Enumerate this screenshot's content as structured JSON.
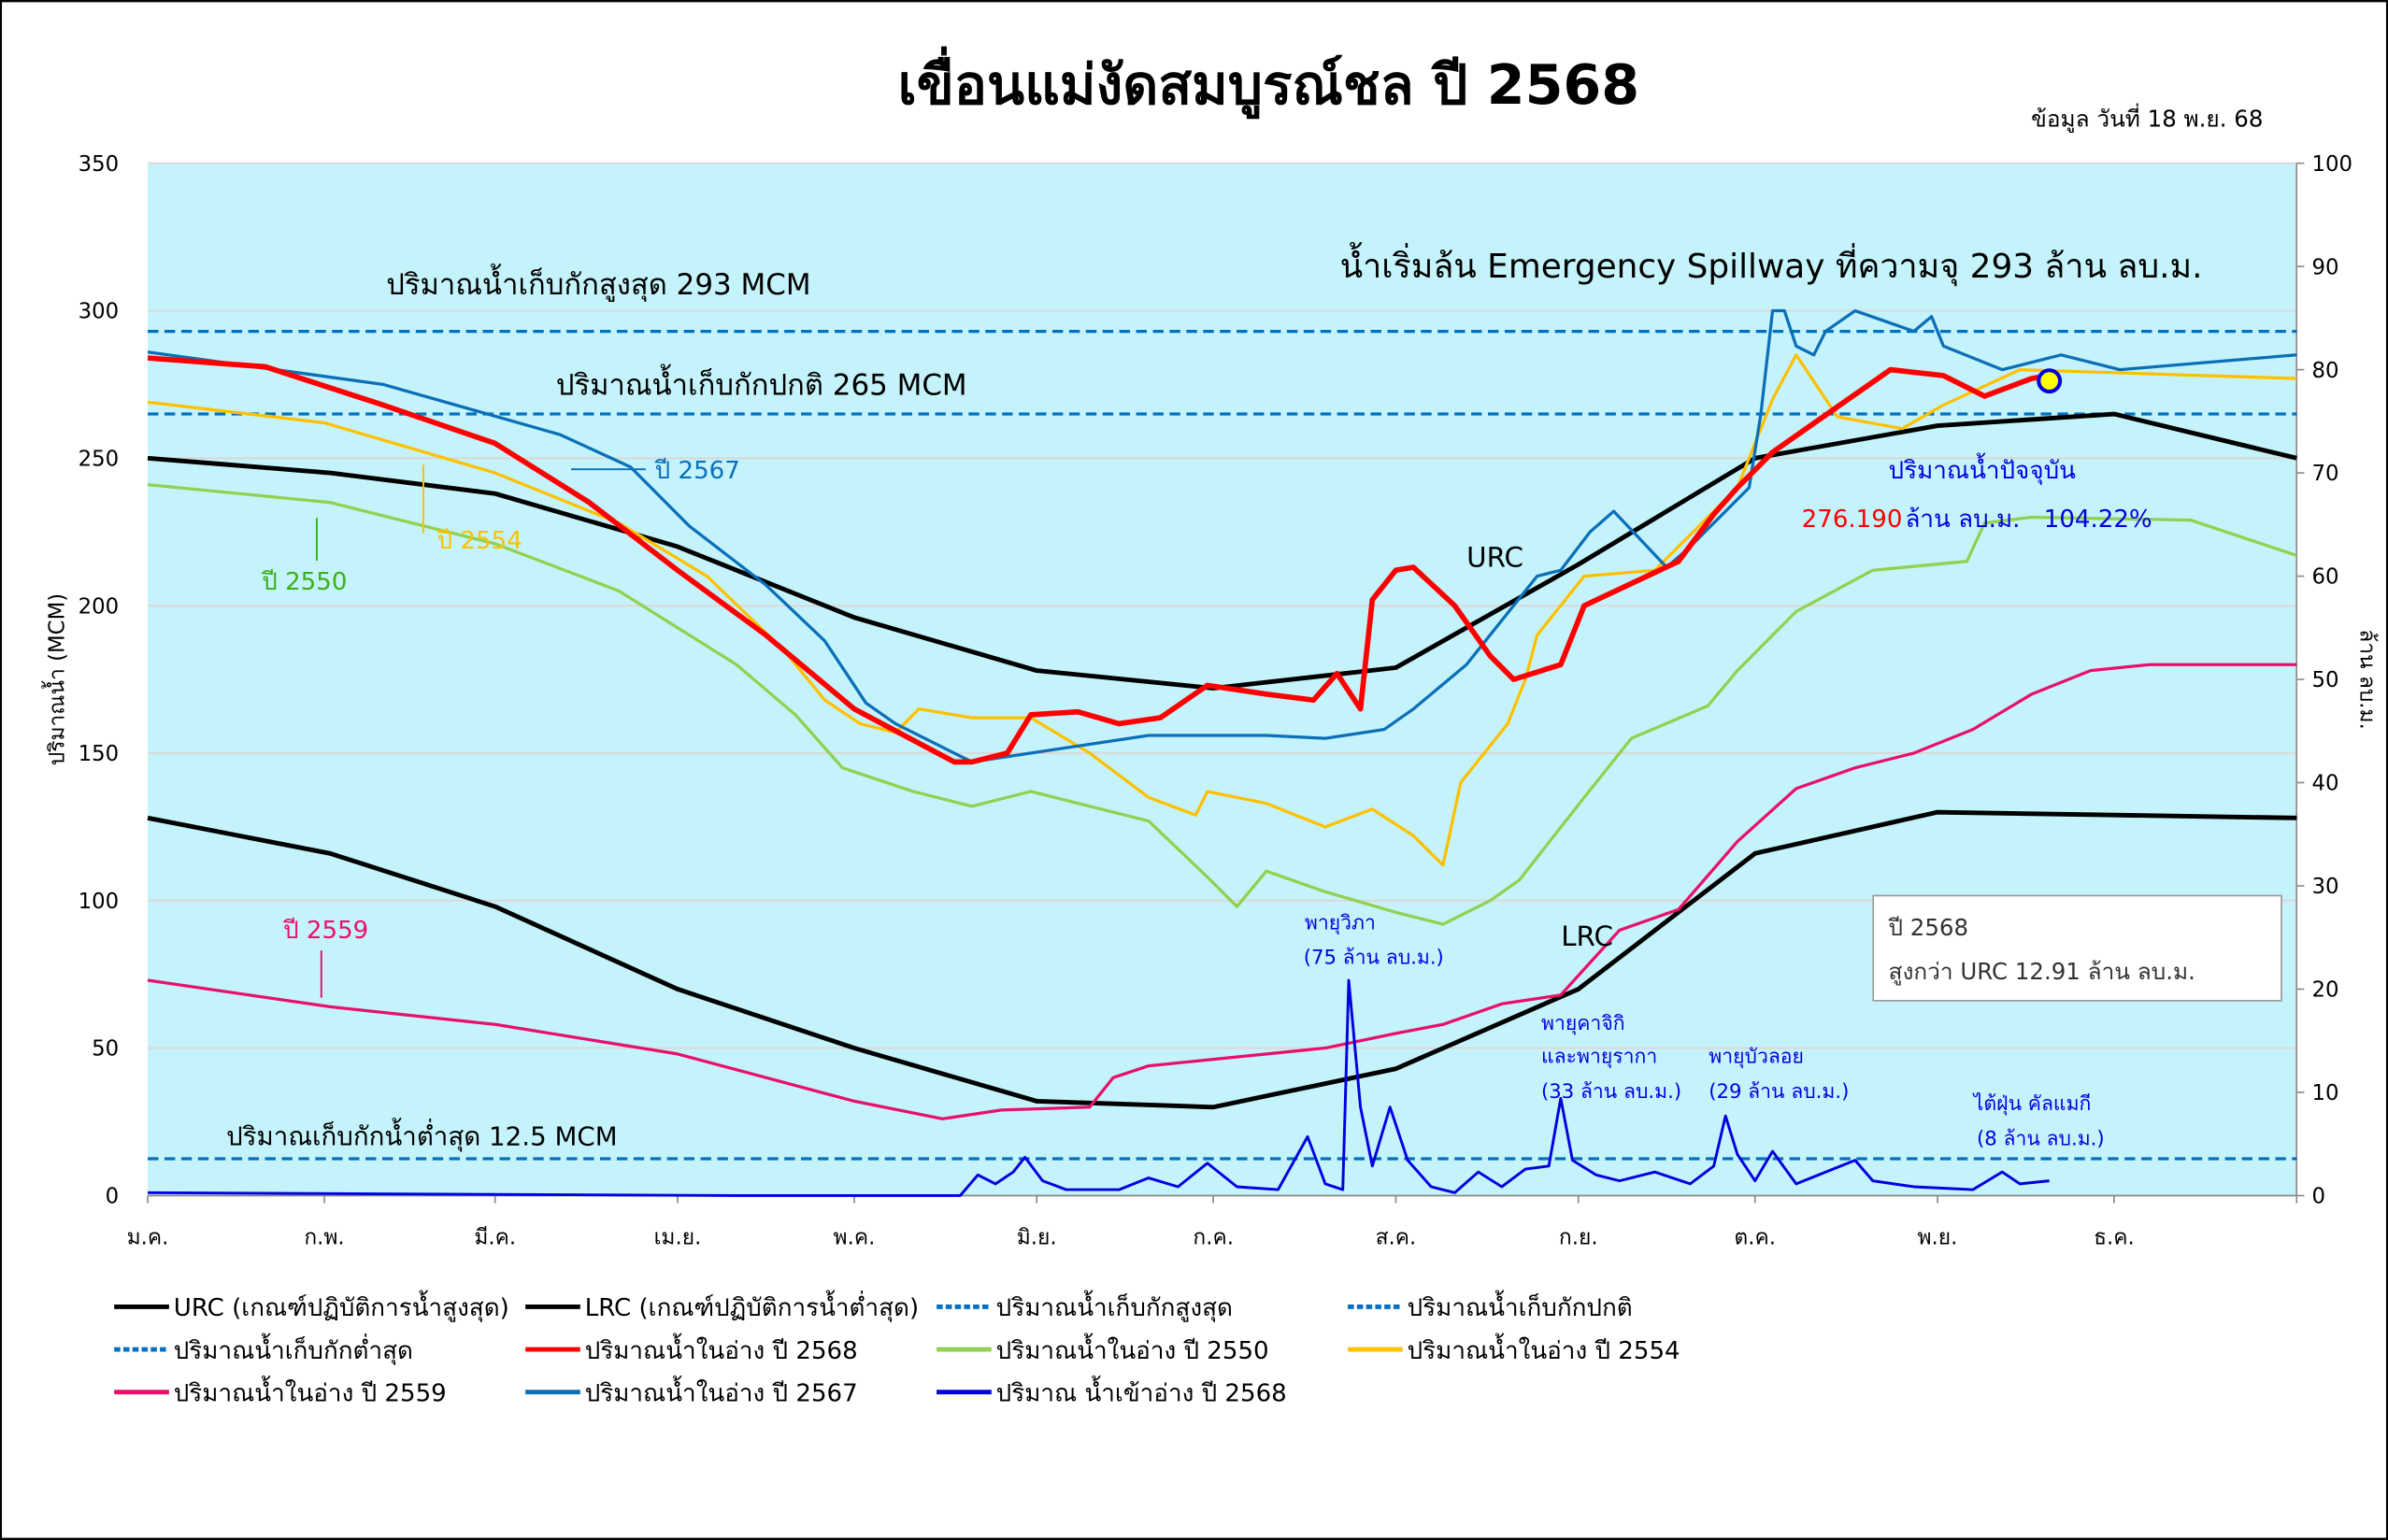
{
  "chart_data": {
    "type": "line",
    "title": "เขื่อนแม่งัดสมบูรณ์ชล ปี 2568",
    "subtitle": "ข้อมูล วันที่ 18 พ.ย. 68",
    "ylabel": "ปริมาณน้ำ (MCM)",
    "ylabel_right": "ล้าน ลบ.ม.",
    "ylim": [
      0,
      350
    ],
    "ylim_right": [
      0,
      100
    ],
    "yticks": [
      0,
      50,
      100,
      150,
      200,
      250,
      300,
      350
    ],
    "yticks_right": [
      0,
      10,
      20,
      30,
      40,
      50,
      60,
      70,
      80,
      90,
      100
    ],
    "x_unit": "day of year",
    "xlim": [
      0,
      365
    ],
    "months": [
      {
        "label": "ม.ค.",
        "day": 0
      },
      {
        "label": "ก.พ.",
        "day": 30
      },
      {
        "label": "มี.ค.",
        "day": 59
      },
      {
        "label": "เม.ย.",
        "day": 90
      },
      {
        "label": "พ.ค.",
        "day": 120
      },
      {
        "label": "มิ.ย.",
        "day": 151
      },
      {
        "label": "ก.ค.",
        "day": 181
      },
      {
        "label": "ส.ค.",
        "day": 212
      },
      {
        "label": "ก.ย.",
        "day": 243
      },
      {
        "label": "ต.ค.",
        "day": 273
      },
      {
        "label": "พ.ย.",
        "day": 304
      },
      {
        "label": "ธ.ค.",
        "day": 334
      }
    ],
    "hlines": [
      {
        "name": "ปริมาณน้ำเก็บกักสูงสุด",
        "value": 293,
        "color": "#0070c0",
        "label": "ปริมาณน้ำเก็บกักสูงสุด 293 MCM"
      },
      {
        "name": "ปริมาณน้ำเก็บกักปกติ",
        "value": 265,
        "color": "#0070c0",
        "label": "ปริมาณน้ำเก็บกักปกติ 265 MCM"
      },
      {
        "name": "ปริมาณน้ำเก็บกักต่ำสุด",
        "value": 12.5,
        "color": "#0070c0",
        "label": "ปริมาณเก็บกักน้ำต่ำสุด 12.5 MCM"
      }
    ],
    "series": [
      {
        "key": "urc",
        "name": "URC (เกณฑ์ปฏิบัติการน้ำสูงสุด)",
        "color": "#000000",
        "width": 3,
        "points": [
          [
            0,
            250
          ],
          [
            31,
            245
          ],
          [
            59,
            238
          ],
          [
            90,
            220
          ],
          [
            120,
            196
          ],
          [
            151,
            178
          ],
          [
            181,
            172
          ],
          [
            212,
            179
          ],
          [
            243,
            214
          ],
          [
            273,
            250
          ],
          [
            304,
            261
          ],
          [
            334,
            265
          ],
          [
            365,
            250
          ]
        ]
      },
      {
        "key": "lrc",
        "name": "LRC (เกณฑ์ปฏิบัติการน้ำต่ำสุด)",
        "color": "#000000",
        "width": 3,
        "points": [
          [
            0,
            128
          ],
          [
            31,
            116
          ],
          [
            59,
            98
          ],
          [
            90,
            70
          ],
          [
            120,
            50
          ],
          [
            151,
            32
          ],
          [
            181,
            30
          ],
          [
            212,
            43
          ],
          [
            243,
            70
          ],
          [
            273,
            116
          ],
          [
            304,
            130
          ],
          [
            334,
            129
          ],
          [
            365,
            128
          ]
        ]
      },
      {
        "key": "s2550",
        "name": "ปริมาณน้ำในอ่าง ปี 2550",
        "color": "#92d050",
        "width": 2,
        "points": [
          [
            0,
            241
          ],
          [
            31,
            235
          ],
          [
            59,
            221
          ],
          [
            80,
            205
          ],
          [
            100,
            180
          ],
          [
            110,
            163
          ],
          [
            118,
            145
          ],
          [
            130,
            137
          ],
          [
            140,
            132
          ],
          [
            150,
            137
          ],
          [
            160,
            132
          ],
          [
            170,
            127
          ],
          [
            180,
            108
          ],
          [
            185,
            98
          ],
          [
            190,
            110
          ],
          [
            200,
            103
          ],
          [
            212,
            96
          ],
          [
            220,
            92
          ],
          [
            228,
            100
          ],
          [
            233,
            107
          ],
          [
            244,
            135
          ],
          [
            252,
            155
          ],
          [
            265,
            166
          ],
          [
            270,
            178
          ],
          [
            280,
            198
          ],
          [
            293,
            212
          ],
          [
            309,
            215
          ],
          [
            312,
            228
          ],
          [
            320,
            230
          ],
          [
            347,
            229
          ],
          [
            365,
            217
          ]
        ]
      },
      {
        "key": "s2554",
        "name": "ปริมาณน้ำในอ่าง ปี 2554",
        "color": "#ffc000",
        "width": 2,
        "points": [
          [
            0,
            269
          ],
          [
            30,
            262
          ],
          [
            59,
            245
          ],
          [
            80,
            228
          ],
          [
            95,
            210
          ],
          [
            108,
            185
          ],
          [
            115,
            168
          ],
          [
            121,
            160
          ],
          [
            127,
            157
          ],
          [
            131,
            165
          ],
          [
            140,
            162
          ],
          [
            150,
            162
          ],
          [
            160,
            150
          ],
          [
            170,
            135
          ],
          [
            178,
            129
          ],
          [
            180,
            137
          ],
          [
            190,
            133
          ],
          [
            200,
            125
          ],
          [
            208,
            131
          ],
          [
            215,
            122
          ],
          [
            220,
            112
          ],
          [
            223,
            140
          ],
          [
            231,
            160
          ],
          [
            234,
            175
          ],
          [
            236,
            190
          ],
          [
            244,
            210
          ],
          [
            256,
            212
          ],
          [
            260,
            220
          ],
          [
            270,
            240
          ],
          [
            276,
            270
          ],
          [
            280,
            285
          ],
          [
            287,
            264
          ],
          [
            298,
            260
          ],
          [
            305,
            268
          ],
          [
            318,
            280
          ],
          [
            365,
            277
          ]
        ]
      },
      {
        "key": "s2559",
        "name": "ปริมาณน้ำในอ่าง ปี 2559",
        "color": "#e8106c",
        "width": 2,
        "points": [
          [
            0,
            73
          ],
          [
            31,
            64
          ],
          [
            59,
            58
          ],
          [
            90,
            48
          ],
          [
            120,
            32
          ],
          [
            135,
            26
          ],
          [
            145,
            29
          ],
          [
            160,
            30
          ],
          [
            164,
            40
          ],
          [
            170,
            44
          ],
          [
            180,
            46
          ],
          [
            200,
            50
          ],
          [
            212,
            55
          ],
          [
            220,
            58
          ],
          [
            230,
            65
          ],
          [
            240,
            68
          ],
          [
            250,
            90
          ],
          [
            260,
            97
          ],
          [
            270,
            120
          ],
          [
            280,
            138
          ],
          [
            290,
            145
          ],
          [
            300,
            150
          ],
          [
            310,
            158
          ],
          [
            320,
            170
          ],
          [
            330,
            178
          ],
          [
            340,
            180
          ],
          [
            365,
            180
          ]
        ]
      },
      {
        "key": "s2567",
        "name": "ปริมาณน้ำในอ่าง ปี 2567",
        "color": "#0b6fb8",
        "width": 2,
        "points": [
          [
            0,
            286
          ],
          [
            40,
            275
          ],
          [
            70,
            258
          ],
          [
            82,
            247
          ],
          [
            92,
            227
          ],
          [
            105,
            207
          ],
          [
            115,
            188
          ],
          [
            122,
            167
          ],
          [
            127,
            160
          ],
          [
            140,
            147
          ],
          [
            150,
            150
          ],
          [
            170,
            156
          ],
          [
            190,
            156
          ],
          [
            200,
            155
          ],
          [
            210,
            158
          ],
          [
            215,
            165
          ],
          [
            224,
            180
          ],
          [
            236,
            210
          ],
          [
            240,
            212
          ],
          [
            245,
            225
          ],
          [
            249,
            232
          ],
          [
            258,
            213
          ],
          [
            262,
            220
          ],
          [
            272,
            240
          ],
          [
            274,
            265
          ],
          [
            276,
            300
          ],
          [
            278,
            300
          ],
          [
            280,
            288
          ],
          [
            283,
            285
          ],
          [
            285,
            293
          ],
          [
            290,
            300
          ],
          [
            300,
            293
          ],
          [
            303,
            298
          ],
          [
            305,
            288
          ],
          [
            315,
            280
          ],
          [
            325,
            285
          ],
          [
            335,
            280
          ],
          [
            365,
            285
          ]
        ]
      },
      {
        "key": "s2568",
        "name": "ปริมาณน้ำในอ่าง ปี 2568",
        "color": "#ff0000",
        "width": 3.5,
        "points": [
          [
            0,
            284
          ],
          [
            20,
            281
          ],
          [
            40,
            268
          ],
          [
            59,
            255
          ],
          [
            75,
            235
          ],
          [
            90,
            212
          ],
          [
            105,
            190
          ],
          [
            120,
            165
          ],
          [
            137,
            147
          ],
          [
            140,
            147
          ],
          [
            146,
            150
          ],
          [
            150,
            163
          ],
          [
            158,
            164
          ],
          [
            165,
            160
          ],
          [
            172,
            162
          ],
          [
            180,
            173
          ],
          [
            190,
            170
          ],
          [
            198,
            168
          ],
          [
            202,
            177
          ],
          [
            206,
            165
          ],
          [
            208,
            202
          ],
          [
            212,
            212
          ],
          [
            215,
            213
          ],
          [
            222,
            200
          ],
          [
            228,
            183
          ],
          [
            232,
            175
          ],
          [
            240,
            180
          ],
          [
            244,
            200
          ],
          [
            260,
            215
          ],
          [
            266,
            231
          ],
          [
            270,
            240
          ],
          [
            276,
            252
          ],
          [
            286,
            266
          ],
          [
            296,
            280
          ],
          [
            305,
            278
          ],
          [
            312,
            271
          ],
          [
            320,
            277
          ],
          [
            323,
            278
          ]
        ]
      },
      {
        "key": "inflow",
        "name": "ปริมาณ น้ำเข้าอ่าง ปี 2568",
        "color": "#0000e0",
        "width": 1.8,
        "points": [
          [
            0,
            1
          ],
          [
            100,
            0
          ],
          [
            138,
            0
          ],
          [
            141,
            7
          ],
          [
            144,
            4
          ],
          [
            147,
            8
          ],
          [
            149,
            13
          ],
          [
            152,
            5
          ],
          [
            156,
            2
          ],
          [
            165,
            2
          ],
          [
            170,
            6
          ],
          [
            175,
            3
          ],
          [
            180,
            11
          ],
          [
            185,
            3
          ],
          [
            192,
            2
          ],
          [
            197,
            20
          ],
          [
            200,
            4
          ],
          [
            203,
            2
          ],
          [
            204,
            73
          ],
          [
            206,
            30
          ],
          [
            208,
            10
          ],
          [
            211,
            30
          ],
          [
            214,
            12
          ],
          [
            218,
            3
          ],
          [
            222,
            1
          ],
          [
            226,
            8
          ],
          [
            230,
            3
          ],
          [
            234,
            9
          ],
          [
            238,
            10
          ],
          [
            240,
            33
          ],
          [
            242,
            12
          ],
          [
            246,
            7
          ],
          [
            250,
            5
          ],
          [
            256,
            8
          ],
          [
            262,
            4
          ],
          [
            266,
            10
          ],
          [
            268,
            27
          ],
          [
            270,
            14
          ],
          [
            273,
            5
          ],
          [
            276,
            15
          ],
          [
            280,
            4
          ],
          [
            290,
            12
          ],
          [
            293,
            5
          ],
          [
            300,
            3
          ],
          [
            310,
            2
          ],
          [
            315,
            8
          ],
          [
            318,
            4
          ],
          [
            323,
            5
          ]
        ]
      }
    ],
    "current_point": {
      "day": 323,
      "value": 276.19,
      "color": "#ffff00"
    },
    "annotations": {
      "spillway": "น้ำเริ่มล้น Emergency Spillway ที่ความจุ 293 ล้าน ลบ.ม.",
      "label_2567": "ปี 2567",
      "label_2554": "ปี 2554",
      "label_2550": "ปี 2550",
      "label_2559": "ปี 2559",
      "urc": "URC",
      "lrc": "LRC",
      "current_title": "ปริมาณน้ำปัจจุบัน",
      "current_value": "276.190",
      "current_unit": "ล้าน ลบ.ม.",
      "current_percent": "104.22%",
      "box_line1": "ปี 2568",
      "box_line2": "สูงกว่า URC 12.91 ล้าน ลบ.ม.",
      "storm1_a": "พายุวิภา",
      "storm1_b": "(75 ล้าน ลบ.ม.)",
      "storm2_a": "พายุคาจิกิ",
      "storm2_b": "และพายุรากา",
      "storm2_c": "(33 ล้าน ลบ.ม.)",
      "storm3_a": "พายุบัวลอย",
      "storm3_b": "(29 ล้าน ลบ.ม.)",
      "storm4_a": "ไต้ฝุ่น คัลแมกี",
      "storm4_b": "(8 ล้าน ลบ.ม.)"
    },
    "legend": [
      "urc",
      "lrc",
      "hl0",
      "hl1",
      "hl2",
      "s2568",
      "s2550",
      "s2554",
      "s2559",
      "s2567",
      "inflow"
    ]
  }
}
